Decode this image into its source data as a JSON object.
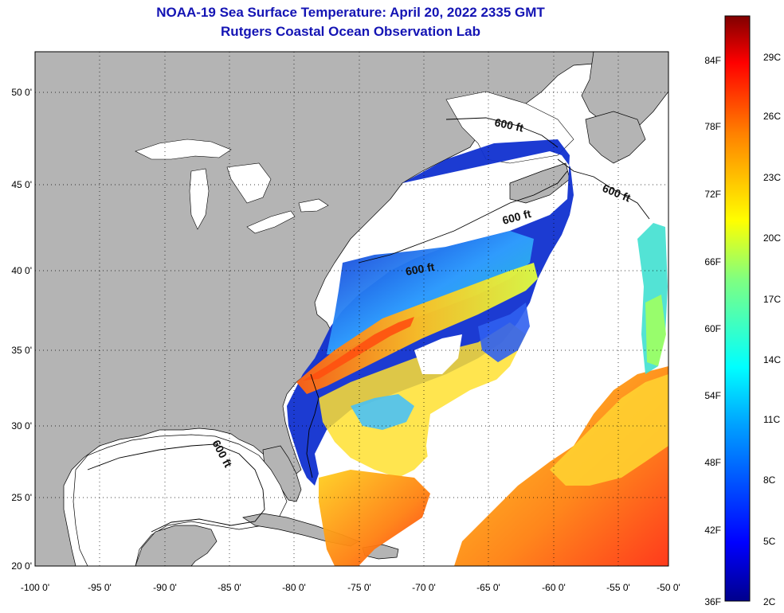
{
  "title": {
    "line1": "NOAA-19 Sea Surface Temperature:  April 20, 2022 2335 GMT",
    "line2": "Rutgers Coastal Ocean Observation Lab"
  },
  "axes": {
    "lon_labels": [
      "-100 0'",
      "-95 0'",
      "-90 0'",
      "-85 0'",
      "-80 0'",
      "-75 0'",
      "-70 0'",
      "-65 0'",
      "-60 0'",
      "-55 0'",
      "-50 0'"
    ],
    "lat_labels": [
      "20 0'",
      "25 0'",
      "30 0'",
      "35 0'",
      "40 0'",
      "45 0'",
      "50 0'"
    ]
  },
  "contours": {
    "label": "600 ft"
  },
  "colorbar": {
    "fahrenheit_labels": [
      "84F",
      "78F",
      "72F",
      "66F",
      "60F",
      "54F",
      "48F",
      "42F",
      "36F"
    ],
    "celsius_labels": [
      "29C",
      "26C",
      "23C",
      "20C",
      "17C",
      "14C",
      "11C",
      "8C",
      "5C",
      "2C"
    ]
  },
  "colors": {
    "title": "#1414b4",
    "land": "#b4b4b4",
    "ocean_no_data": "#ffffff",
    "scale_low": "#00008c",
    "scale_high": "#800000"
  }
}
